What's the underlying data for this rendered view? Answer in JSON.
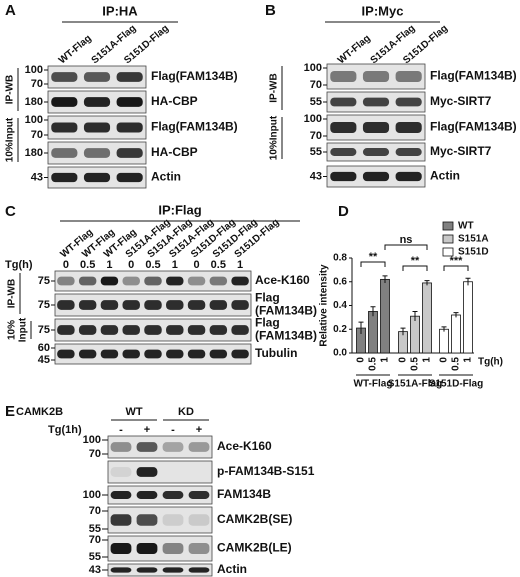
{
  "panels": [
    {
      "label": "A",
      "ip": "IP:HA",
      "lanes": [
        "WT-Flag",
        "S151A-Flag",
        "S151D-Flag"
      ],
      "sections": [
        {
          "label": "IP-WB",
          "rows": [
            {
              "markers": [
                100,
                70
              ],
              "name": "Flag(FAM134B)"
            },
            {
              "markers": [
                180
              ],
              "name": "HA-CBP"
            }
          ]
        },
        {
          "label": "10%Input",
          "rows": [
            {
              "markers": [
                100,
                70
              ],
              "name": "Flag(FAM134B)"
            },
            {
              "markers": [
                180
              ],
              "name": "HA-CBP"
            }
          ]
        }
      ],
      "rows": [
        {
          "markers": [
            43
          ],
          "name": "Actin"
        }
      ]
    },
    {
      "label": "B",
      "ip": "IP:Myc",
      "lanes": [
        "WT-Flag",
        "S151A-Flag",
        "S151D-Flag"
      ],
      "sections": [
        {
          "label": "IP-WB",
          "rows": [
            {
              "markers": [
                100,
                70
              ],
              "name": "Flag(FAM134B)"
            },
            {
              "markers": [
                55
              ],
              "name": "Myc-SIRT7"
            }
          ]
        },
        {
          "label": "10%Input",
          "rows": [
            {
              "markers": [
                100,
                70
              ],
              "name": "Flag(FAM134B)"
            },
            {
              "markers": [
                55
              ],
              "name": "Myc-SIRT7"
            }
          ]
        }
      ],
      "rows": [
        {
          "markers": [
            43
          ],
          "name": "Actin"
        }
      ]
    },
    {
      "label": "C",
      "ip": "IP:Flag",
      "lanes": [
        "WT-Flag",
        "WT-Flag",
        "WT-Flag",
        "S151A-Flag",
        "S151A-Flag",
        "S151A-Flag",
        "S151D-Flag",
        "S151D-Flag",
        "S151D-Flag"
      ],
      "treatment": {
        "label": "Tg(h)",
        "values": [
          0,
          0.5,
          1,
          0,
          0.5,
          1,
          0,
          0.5,
          1
        ]
      },
      "sections": [
        {
          "label": "IP-WB",
          "rows": [
            {
              "markers": [
                75
              ],
              "name": "Ace-K160"
            },
            {
              "markers": [
                75
              ],
              "name": [
                "Flag",
                "(FAM134B)"
              ]
            }
          ]
        },
        {
          "label": [
            "10%",
            "Input"
          ],
          "rows": [
            {
              "markers": [
                75
              ],
              "name": [
                "Flag",
                "(FAM134B)"
              ]
            }
          ]
        }
      ],
      "rows": [
        {
          "markers": [
            60,
            45
          ],
          "name": "Tubulin"
        }
      ]
    },
    {
      "label": "E",
      "header": "CAMK2B",
      "groups": [
        {
          "name": "WT"
        },
        {
          "name": "KD"
        }
      ],
      "treatment": {
        "label": "Tg(1h)",
        "values": [
          "-",
          "+",
          "-",
          "+"
        ]
      },
      "rows": [
        {
          "markers": [
            100,
            70
          ],
          "name": "Ace-K160"
        },
        {
          "name": "p-FAM134B-S151"
        },
        {
          "markers": [
            100
          ],
          "name": "FAM134B"
        },
        {
          "markers": [
            70,
            55
          ],
          "name": "CAMK2B(SE)"
        },
        {
          "markers": [
            70,
            55
          ],
          "name": "CAMK2B(LE)"
        },
        {
          "markers": [
            43
          ],
          "name": "Actin"
        }
      ]
    }
  ],
  "chart_data": {
    "type": "bar",
    "panel_label": "D",
    "ylabel": "Relative intensity",
    "xlabel": "Tg(h)",
    "categories": [
      0,
      0.5,
      1
    ],
    "groups": [
      "WT-Flag",
      "S151A-Flag",
      "S151D-Flag"
    ],
    "series": [
      {
        "name": "WT",
        "color": "#808080",
        "values": [
          0.21,
          0.35,
          0.62
        ],
        "errors": [
          0.05,
          0.04,
          0.03
        ]
      },
      {
        "name": "S151A",
        "color": "#c8c8c8",
        "values": [
          0.18,
          0.31,
          0.59
        ],
        "errors": [
          0.03,
          0.04,
          0.02
        ]
      },
      {
        "name": "S151D",
        "color": "#ffffff",
        "values": [
          0.2,
          0.32,
          0.6
        ],
        "errors": [
          0.02,
          0.02,
          0.03
        ]
      }
    ],
    "ylim": [
      0,
      0.8
    ],
    "yticks": [
      {
        "value": 0,
        "label": "0.0"
      },
      0.2,
      0.4,
      0.6,
      0.8
    ],
    "annotations": [
      "**",
      "ns",
      "**",
      "***"
    ],
    "legend": "upper right"
  }
}
